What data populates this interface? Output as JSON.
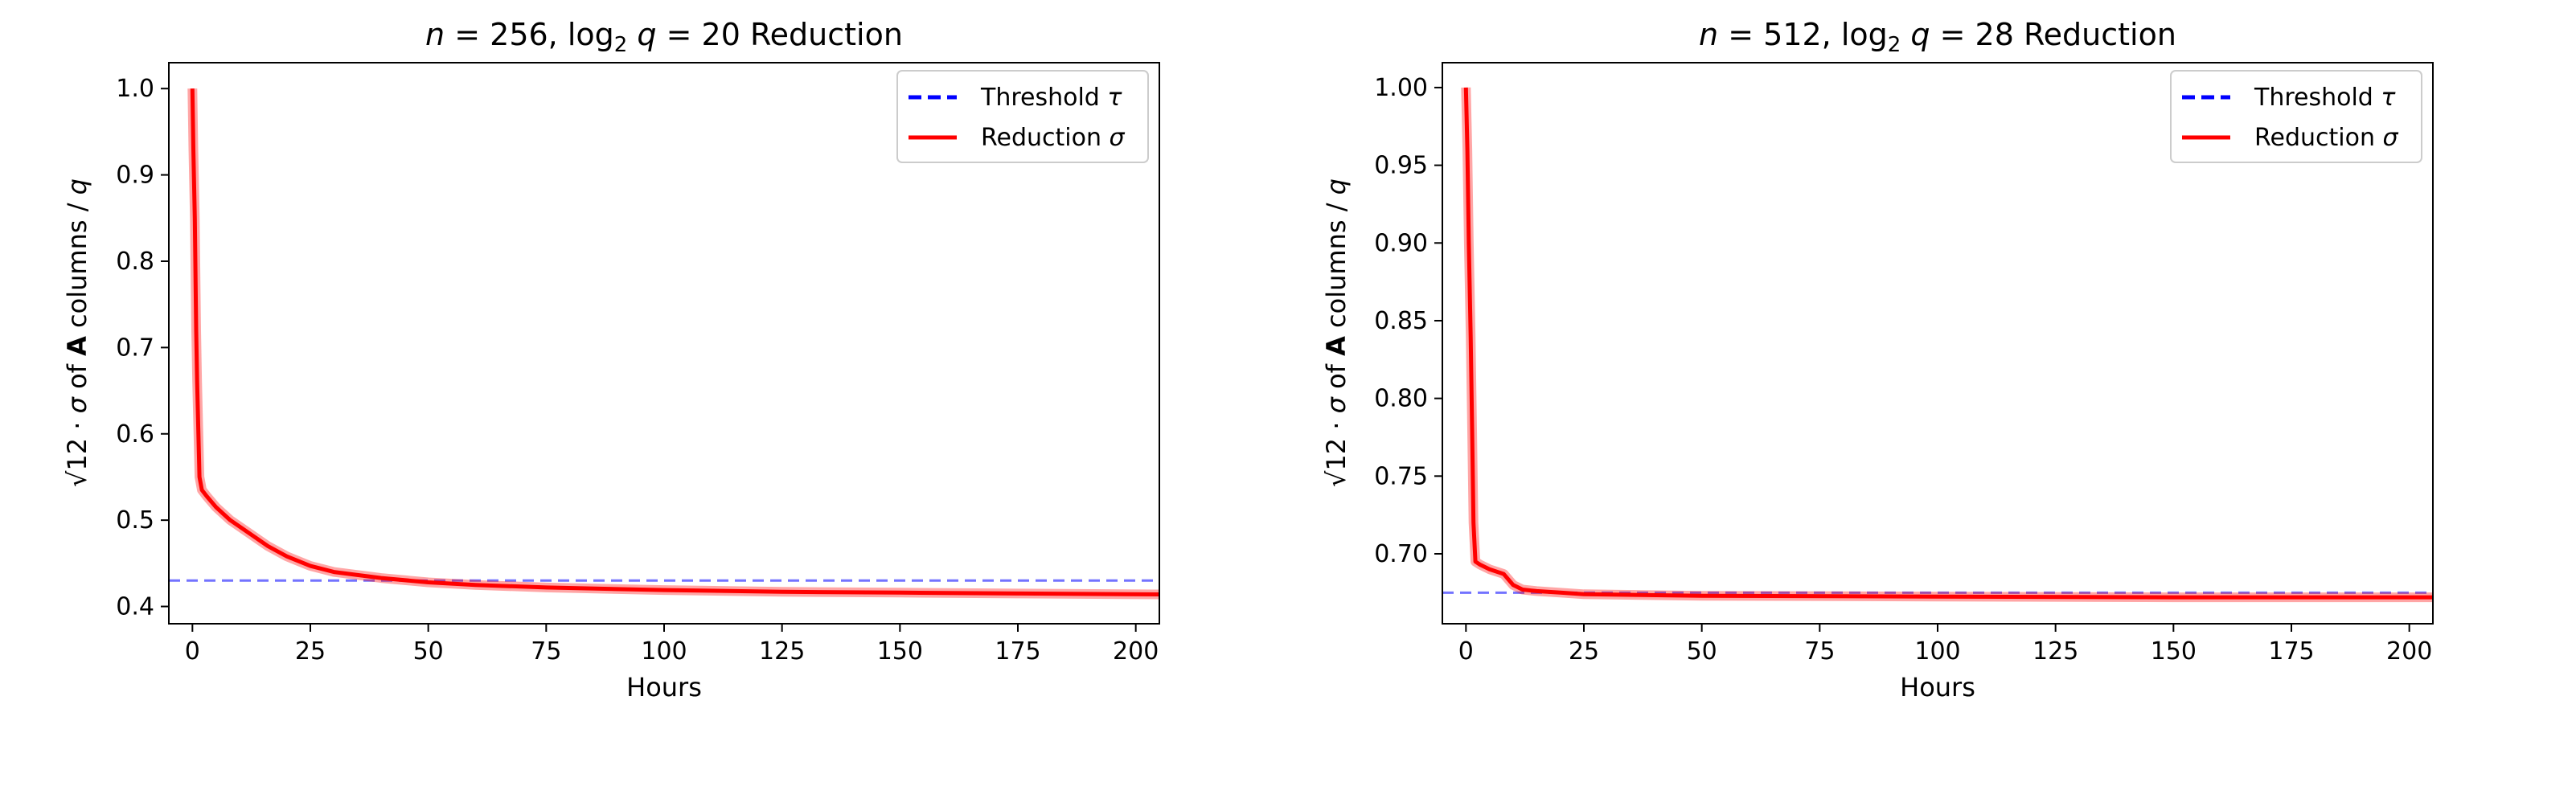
{
  "chart_data": [
    {
      "type": "line",
      "title": {
        "pre": "n",
        "eq1": " = 256, log",
        "sub": "2",
        "q": "q",
        "eq2": " = 20 Reduction"
      },
      "xlabel": "Hours",
      "ylabel": {
        "pre": "√12 · ",
        "sigma": "σ",
        "of": " of ",
        "A": "A",
        "post": " columns / ",
        "q": "q"
      },
      "xlim": [
        -5,
        205
      ],
      "ylim": [
        0.38,
        1.03
      ],
      "xticks": [
        0,
        25,
        50,
        75,
        100,
        125,
        150,
        175,
        200
      ],
      "yticks": [
        0.4,
        0.5,
        0.6,
        0.7,
        0.8,
        0.9,
        1.0
      ],
      "ytick_labels": [
        "0.4",
        "0.5",
        "0.6",
        "0.7",
        "0.8",
        "0.9",
        "1.0"
      ],
      "threshold": 0.43,
      "legend_position": "top-right",
      "legend": [
        {
          "label": "Threshold ",
          "symbol": "τ",
          "color": "#0000ff",
          "style": "dashed"
        },
        {
          "label": "Reduction ",
          "symbol": "σ",
          "color": "#ff0000",
          "style": "solid"
        }
      ],
      "series": [
        {
          "name": "Reduction σ",
          "color": "#ff0000",
          "x": [
            0,
            0.2,
            0.5,
            0.8,
            1,
            1.5,
            2,
            3,
            5,
            8,
            12,
            16,
            20,
            25,
            30,
            40,
            50,
            60,
            75,
            100,
            125,
            150,
            175,
            205
          ],
          "y": [
            1.0,
            0.93,
            0.85,
            0.72,
            0.66,
            0.55,
            0.535,
            0.528,
            0.515,
            0.5,
            0.485,
            0.47,
            0.458,
            0.447,
            0.44,
            0.433,
            0.428,
            0.425,
            0.422,
            0.419,
            0.417,
            0.416,
            0.415,
            0.414
          ]
        }
      ]
    },
    {
      "type": "line",
      "title": {
        "pre": "n",
        "eq1": " = 512, log",
        "sub": "2",
        "q": "q",
        "eq2": " = 28 Reduction"
      },
      "xlabel": "Hours",
      "ylabel": {
        "pre": "√12 · ",
        "sigma": "σ",
        "of": " of ",
        "A": "A",
        "post": " columns / ",
        "q": "q"
      },
      "xlim": [
        -5,
        205
      ],
      "ylim": [
        0.655,
        1.016
      ],
      "xticks": [
        0,
        25,
        50,
        75,
        100,
        125,
        150,
        175,
        200
      ],
      "yticks": [
        0.7,
        0.75,
        0.8,
        0.85,
        0.9,
        0.95,
        1.0
      ],
      "ytick_labels": [
        "0.70",
        "0.75",
        "0.80",
        "0.85",
        "0.90",
        "0.95",
        "1.00"
      ],
      "threshold": 0.675,
      "legend_position": "top-right",
      "legend": [
        {
          "label": "Threshold ",
          "symbol": "τ",
          "color": "#0000ff",
          "style": "dashed"
        },
        {
          "label": "Reduction ",
          "symbol": "σ",
          "color": "#ff0000",
          "style": "solid"
        }
      ],
      "series": [
        {
          "name": "Reduction σ",
          "color": "#ff0000",
          "x": [
            0,
            0.3,
            0.6,
            1,
            1.3,
            1.6,
            2,
            3,
            5,
            8,
            10,
            12,
            15,
            20,
            25,
            50,
            100,
            150,
            205
          ],
          "y": [
            1.0,
            0.96,
            0.9,
            0.84,
            0.78,
            0.72,
            0.695,
            0.693,
            0.69,
            0.687,
            0.68,
            0.677,
            0.676,
            0.675,
            0.674,
            0.673,
            0.6725,
            0.672,
            0.672
          ]
        }
      ]
    }
  ]
}
